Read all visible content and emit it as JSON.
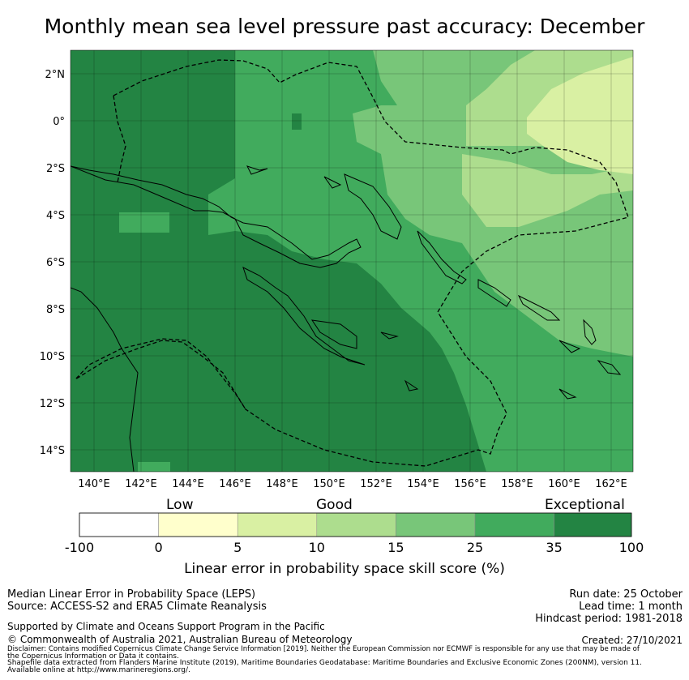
{
  "title": "Monthly mean sea level pressure past accuracy: December",
  "map": {
    "lat_labels": [
      "2°N",
      "0°",
      "2°S",
      "4°S",
      "6°S",
      "8°S",
      "10°S",
      "12°S",
      "14°S"
    ],
    "lon_labels": [
      "140°E",
      "142°E",
      "144°E",
      "146°E",
      "148°E",
      "150°E",
      "152°E",
      "154°E",
      "156°E",
      "158°E",
      "160°E",
      "162°E"
    ]
  },
  "colorbar": {
    "categories": [
      "Low",
      "Good",
      "Exceptional"
    ],
    "ticks": [
      "-100",
      "0",
      "5",
      "10",
      "15",
      "25",
      "35",
      "100"
    ],
    "colors": [
      "#ffffff",
      "#ffffcc",
      "#d9f0a3",
      "#addd8e",
      "#78c679",
      "#41ab5d",
      "#238443"
    ],
    "label": "Linear error in probability space skill score (%)"
  },
  "footer": {
    "line1": "Median Linear Error in Probability Space (LEPS)",
    "line2": "Source: ACCESS-S2 and ERA5 Climate Reanalysis",
    "support": "Supported by Climate and Oceans Support Program in the Pacific",
    "copyright": "© Commonwealth of Australia 2021, Australian Bureau of Meteorology",
    "run_date": "Run date: 25 October",
    "lead_time": "Lead time: 1 month",
    "hindcast": "Hindcast period: 1981-2018",
    "created": "Created: 27/10/2021",
    "disclaimer1": "Disclaimer: Contains modified Copernicus Climate Change Service Information [2019]. Neither the European Commission nor ECMWF is responsible for any use that may be made of",
    "disclaimer2": "the Copernicus Information or Data it contains.",
    "shapefile1": "Shapefile data extracted from Flanders Marine Institute (2019), Maritime Boundaries Geodatabase: Maritime Boundaries and Exclusive Economic Zones (200NM), version 11.",
    "shapefile2": "Available online at http://www.marineregions.org/."
  }
}
